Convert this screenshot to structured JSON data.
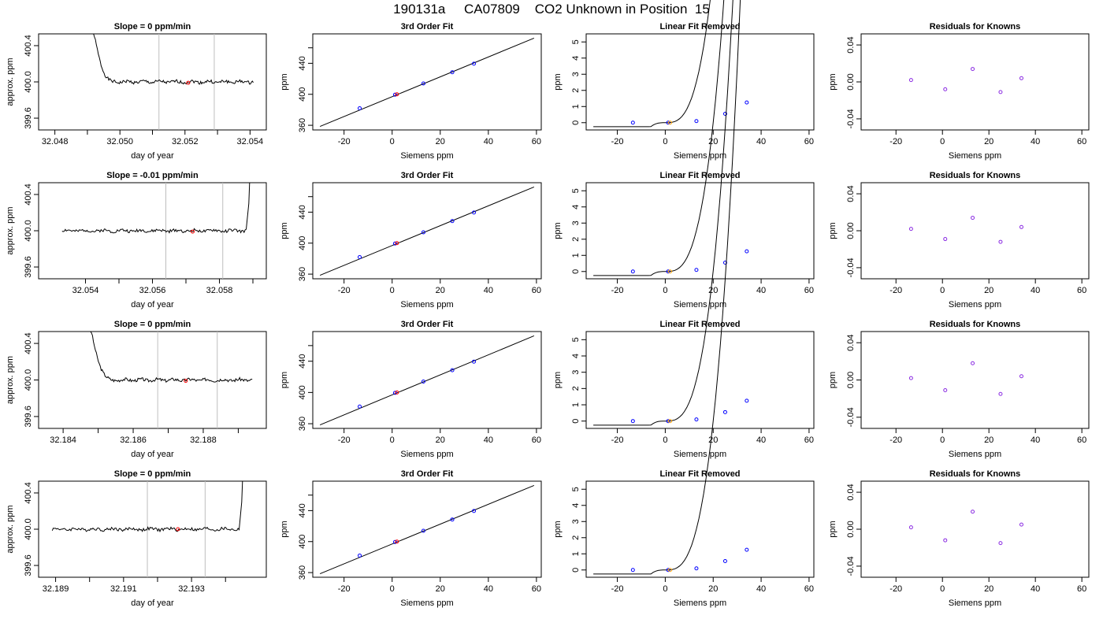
{
  "page_title": "190131a     CA07809    CO2 Unknown in Position  15",
  "colors": {
    "line": "#000000",
    "known_point": "#0000ff",
    "unknown_point": "#ff0000",
    "residual_point": "#8a2be2",
    "marker_line": "#bebebe",
    "fit_unknown_point": "#ffa500"
  },
  "chart_data": [
    {
      "type": "line",
      "panel": "slope",
      "title": "Slope =  0  ppm/min",
      "xlabel": "day of year",
      "ylabel": "approx. ppm",
      "xlim": [
        32.0475,
        32.0545
      ],
      "ylim": [
        399.47,
        400.53
      ],
      "xticks": [
        32.048,
        32.05,
        32.052,
        32.054
      ],
      "xtick_labels": [
        "32.048",
        "32.050",
        "32.052",
        "32.054"
      ],
      "minor_xticks": [
        32.049,
        32.051,
        32.053
      ],
      "yticks": [
        399.6,
        400.0,
        400.4
      ],
      "ytick_labels": [
        "399.6",
        "400.0",
        "400.4"
      ],
      "markers": [
        32.0512,
        32.0529
      ],
      "unknown_point": {
        "x": 32.0521,
        "y": 399.99
      },
      "trace": {
        "start": 32.0491,
        "end": 32.0541,
        "level": 400.0,
        "spike": "start",
        "spike_end": 32.0494,
        "seed": 1
      }
    },
    {
      "type": "scatter",
      "panel": "fit",
      "title": "3rd Order Fit",
      "xlabel": "Siemens ppm",
      "ylabel": "ppm",
      "xlim": [
        -33,
        62
      ],
      "ylim": [
        354,
        478
      ],
      "xticks": [
        -20,
        0,
        20,
        40,
        60
      ],
      "xtick_labels": [
        "-20",
        "0",
        "20",
        "40",
        "60"
      ],
      "yticks": [
        360,
        400,
        440,
        460
      ],
      "ytick_labels": [
        "360",
        "400",
        "440",
        ""
      ],
      "line": [
        {
          "x": -30,
          "y": 358.5
        },
        {
          "x": 59,
          "y": 472.5
        }
      ],
      "knowns": [
        {
          "x": -13.5,
          "y": 382
        },
        {
          "x": 1.2,
          "y": 399.5
        },
        {
          "x": 13,
          "y": 414
        },
        {
          "x": 25,
          "y": 428.5
        },
        {
          "x": 34,
          "y": 439.5
        }
      ],
      "unknown_point": {
        "x": 2,
        "y": 400
      }
    },
    {
      "type": "line",
      "panel": "linear_removed",
      "title": "Linear Fit Removed",
      "xlabel": "Siemens ppm",
      "ylabel": "ppm",
      "xlim": [
        -33,
        62
      ],
      "ylim": [
        -0.45,
        5.5
      ],
      "xticks": [
        -20,
        0,
        20,
        40,
        60
      ],
      "xtick_labels": [
        "-20",
        "0",
        "20",
        "40",
        "60"
      ],
      "yticks": [
        0,
        1,
        2,
        3,
        4,
        5
      ],
      "ytick_labels": [
        "0",
        "1",
        "2",
        "3",
        "4",
        "5"
      ],
      "curve_coef": [
        2.7e-05,
        2.5e-05,
        0.00115
      ],
      "knowns": [
        {
          "x": -13.5,
          "y": 0.0
        },
        {
          "x": 1.2,
          "y": 0.0
        },
        {
          "x": 13,
          "y": 0.1
        },
        {
          "x": 25,
          "y": 0.55
        },
        {
          "x": 34,
          "y": 1.25
        }
      ],
      "unknown_point": {
        "x": 2,
        "y": 0.0
      }
    },
    {
      "type": "scatter",
      "panel": "residuals",
      "title": "Residuals for Knowns",
      "xlabel": "Siemens ppm",
      "ylabel": "ppm",
      "xlim": [
        -35,
        63
      ],
      "ylim": [
        -0.052,
        0.052
      ],
      "xticks": [
        -20,
        0,
        20,
        40,
        60
      ],
      "xtick_labels": [
        "-20",
        "0",
        "20",
        "40",
        "60"
      ],
      "yticks": [
        -0.04,
        0.0,
        0.04
      ],
      "ytick_labels": [
        "-0.04",
        "0.00",
        "0.04"
      ],
      "knowns": [
        {
          "x": -13.5,
          "y": 0.002
        },
        {
          "x": 1.2,
          "y": -0.008
        },
        {
          "x": 13,
          "y": 0.014
        },
        {
          "x": 25,
          "y": -0.011
        },
        {
          "x": 34,
          "y": 0.004
        }
      ]
    },
    {
      "type": "line",
      "panel": "slope",
      "title": "Slope =  -0.01  ppm/min",
      "xlabel": "day of year",
      "ylabel": "approx. ppm",
      "xlim": [
        32.0526,
        32.0594
      ],
      "ylim": [
        399.47,
        400.53
      ],
      "xticks": [
        32.054,
        32.056,
        32.058
      ],
      "xtick_labels": [
        "32.054",
        "32.056",
        "32.058"
      ],
      "minor_xticks": [
        32.055,
        32.057,
        32.059
      ],
      "yticks": [
        399.6,
        400.0,
        400.4
      ],
      "ytick_labels": [
        "399.6",
        "400.0",
        "400.4"
      ],
      "markers": [
        32.0564,
        32.0581
      ],
      "unknown_point": {
        "x": 32.0572,
        "y": 399.99
      },
      "trace": {
        "start": 32.0533,
        "end": 32.0588,
        "level": 400.0,
        "spike": "end",
        "spike_end": 32.0589,
        "seed": 2
      }
    },
    {
      "type": "scatter",
      "panel": "fit",
      "title": "3rd Order Fit",
      "xlabel": "Siemens ppm",
      "ylabel": "ppm",
      "xlim": [
        -33,
        62
      ],
      "ylim": [
        354,
        478
      ],
      "xticks": [
        -20,
        0,
        20,
        40,
        60
      ],
      "xtick_labels": [
        "-20",
        "0",
        "20",
        "40",
        "60"
      ],
      "yticks": [
        360,
        400,
        440,
        460
      ],
      "ytick_labels": [
        "360",
        "400",
        "440",
        ""
      ],
      "line": [
        {
          "x": -30,
          "y": 358.5
        },
        {
          "x": 59,
          "y": 472.5
        }
      ],
      "knowns": [
        {
          "x": -13.5,
          "y": 382
        },
        {
          "x": 1.2,
          "y": 399.5
        },
        {
          "x": 13,
          "y": 414
        },
        {
          "x": 25,
          "y": 428.5
        },
        {
          "x": 34,
          "y": 439.5
        }
      ],
      "unknown_point": {
        "x": 2,
        "y": 400
      }
    },
    {
      "type": "line",
      "panel": "linear_removed",
      "title": "Linear Fit Removed",
      "xlabel": "Siemens ppm",
      "ylabel": "ppm",
      "xlim": [
        -33,
        62
      ],
      "ylim": [
        -0.45,
        5.5
      ],
      "xticks": [
        -20,
        0,
        20,
        40,
        60
      ],
      "xtick_labels": [
        "-20",
        "0",
        "20",
        "40",
        "60"
      ],
      "yticks": [
        0,
        1,
        2,
        3,
        4,
        5
      ],
      "ytick_labels": [
        "0",
        "1",
        "2",
        "3",
        "4",
        "5"
      ],
      "curve_coef": [
        2.7e-05,
        2.5e-05,
        0.00115
      ],
      "knowns": [
        {
          "x": -13.5,
          "y": 0.0
        },
        {
          "x": 1.2,
          "y": 0.0
        },
        {
          "x": 13,
          "y": 0.1
        },
        {
          "x": 25,
          "y": 0.55
        },
        {
          "x": 34,
          "y": 1.25
        }
      ],
      "unknown_point": {
        "x": 2,
        "y": 0.0
      }
    },
    {
      "type": "scatter",
      "panel": "residuals",
      "title": "Residuals for Knowns",
      "xlabel": "Siemens ppm",
      "ylabel": "ppm",
      "xlim": [
        -35,
        63
      ],
      "ylim": [
        -0.052,
        0.052
      ],
      "xticks": [
        -20,
        0,
        20,
        40,
        60
      ],
      "xtick_labels": [
        "-20",
        "0",
        "20",
        "40",
        "60"
      ],
      "yticks": [
        -0.04,
        0.0,
        0.04
      ],
      "ytick_labels": [
        "-0.04",
        "0.00",
        "0.04"
      ],
      "knowns": [
        {
          "x": -13.5,
          "y": 0.002
        },
        {
          "x": 1.2,
          "y": -0.009
        },
        {
          "x": 13,
          "y": 0.014
        },
        {
          "x": 25,
          "y": -0.012
        },
        {
          "x": 34,
          "y": 0.004
        }
      ]
    },
    {
      "type": "line",
      "panel": "slope",
      "title": "Slope =  0  ppm/min",
      "xlabel": "day of year",
      "ylabel": "approx. ppm",
      "xlim": [
        32.1833,
        32.1898
      ],
      "ylim": [
        399.47,
        400.53
      ],
      "xticks": [
        32.184,
        32.186,
        32.188
      ],
      "xtick_labels": [
        "32.184",
        "32.186",
        "32.188"
      ],
      "minor_xticks": [
        32.185,
        32.187,
        32.189
      ],
      "yticks": [
        399.6,
        400.0,
        400.4
      ],
      "ytick_labels": [
        "399.6",
        "400.0",
        "400.4"
      ],
      "markers": [
        32.1867,
        32.1884
      ],
      "unknown_point": {
        "x": 32.1875,
        "y": 399.99
      },
      "trace": {
        "start": 32.1847,
        "end": 32.1894,
        "level": 400.0,
        "spike": "start",
        "spike_end": 32.185,
        "seed": 3
      }
    },
    {
      "type": "scatter",
      "panel": "fit",
      "title": "3rd Order Fit",
      "xlabel": "Siemens ppm",
      "ylabel": "ppm",
      "xlim": [
        -33,
        62
      ],
      "ylim": [
        354,
        478
      ],
      "xticks": [
        -20,
        0,
        20,
        40,
        60
      ],
      "xtick_labels": [
        "-20",
        "0",
        "20",
        "40",
        "60"
      ],
      "yticks": [
        360,
        400,
        440,
        460
      ],
      "ytick_labels": [
        "360",
        "400",
        "440",
        ""
      ],
      "line": [
        {
          "x": -30,
          "y": 358.5
        },
        {
          "x": 59,
          "y": 472.5
        }
      ],
      "knowns": [
        {
          "x": -13.5,
          "y": 382
        },
        {
          "x": 1.2,
          "y": 399.5
        },
        {
          "x": 13,
          "y": 414
        },
        {
          "x": 25,
          "y": 428.5
        },
        {
          "x": 34,
          "y": 439.5
        }
      ],
      "unknown_point": {
        "x": 2,
        "y": 400
      }
    },
    {
      "type": "line",
      "panel": "linear_removed",
      "title": "Linear Fit Removed",
      "xlabel": "Siemens ppm",
      "ylabel": "ppm",
      "xlim": [
        -33,
        62
      ],
      "ylim": [
        -0.45,
        5.5
      ],
      "xticks": [
        -20,
        0,
        20,
        40,
        60
      ],
      "xtick_labels": [
        "-20",
        "0",
        "20",
        "40",
        "60"
      ],
      "yticks": [
        0,
        1,
        2,
        3,
        4,
        5
      ],
      "ytick_labels": [
        "0",
        "1",
        "2",
        "3",
        "4",
        "5"
      ],
      "curve_coef": [
        2.6e-05,
        2.5e-05,
        0.00115
      ],
      "knowns": [
        {
          "x": -13.5,
          "y": 0.0
        },
        {
          "x": 1.2,
          "y": 0.0
        },
        {
          "x": 13,
          "y": 0.1
        },
        {
          "x": 25,
          "y": 0.55
        },
        {
          "x": 34,
          "y": 1.25
        }
      ],
      "unknown_point": {
        "x": 2,
        "y": 0.0
      }
    },
    {
      "type": "scatter",
      "panel": "residuals",
      "title": "Residuals for Knowns",
      "xlabel": "Siemens ppm",
      "ylabel": "ppm",
      "xlim": [
        -35,
        63
      ],
      "ylim": [
        -0.052,
        0.052
      ],
      "xticks": [
        -20,
        0,
        20,
        40,
        60
      ],
      "xtick_labels": [
        "-20",
        "0",
        "20",
        "40",
        "60"
      ],
      "yticks": [
        -0.04,
        0.0,
        0.04
      ],
      "ytick_labels": [
        "-0.04",
        "0.00",
        "0.04"
      ],
      "knowns": [
        {
          "x": -13.5,
          "y": 0.002
        },
        {
          "x": 1.2,
          "y": -0.011
        },
        {
          "x": 13,
          "y": 0.018
        },
        {
          "x": 25,
          "y": -0.015
        },
        {
          "x": 34,
          "y": 0.004
        }
      ]
    },
    {
      "type": "line",
      "panel": "slope",
      "title": "Slope =  0  ppm/min",
      "xlabel": "day of year",
      "ylabel": "approx. ppm",
      "xlim": [
        32.1885,
        32.1952
      ],
      "ylim": [
        399.47,
        400.53
      ],
      "xticks": [
        32.189,
        32.191,
        32.193
      ],
      "xtick_labels": [
        "32.189",
        "32.191",
        "32.193"
      ],
      "minor_xticks": [
        32.19,
        32.192,
        32.194
      ],
      "yticks": [
        399.6,
        400.0,
        400.4
      ],
      "ytick_labels": [
        "399.6",
        "400.0",
        "400.4"
      ],
      "markers": [
        32.1917,
        32.1934
      ],
      "unknown_point": {
        "x": 32.1926,
        "y": 400.0
      },
      "trace": {
        "start": 32.1889,
        "end": 32.1944,
        "level": 400.0,
        "spike": "end",
        "spike_end": 32.1945,
        "seed": 4
      }
    },
    {
      "type": "scatter",
      "panel": "fit",
      "title": "3rd Order Fit",
      "xlabel": "Siemens ppm",
      "ylabel": "ppm",
      "xlim": [
        -33,
        62
      ],
      "ylim": [
        354,
        478
      ],
      "xticks": [
        -20,
        0,
        20,
        40,
        60
      ],
      "xtick_labels": [
        "-20",
        "0",
        "20",
        "40",
        "60"
      ],
      "yticks": [
        360,
        400,
        440,
        460
      ],
      "ytick_labels": [
        "360",
        "400",
        "440",
        ""
      ],
      "line": [
        {
          "x": -30,
          "y": 358.5
        },
        {
          "x": 59,
          "y": 472.5
        }
      ],
      "knowns": [
        {
          "x": -13.5,
          "y": 382
        },
        {
          "x": 1.2,
          "y": 399.5
        },
        {
          "x": 13,
          "y": 414
        },
        {
          "x": 25,
          "y": 428.5
        },
        {
          "x": 34,
          "y": 439.5
        }
      ],
      "unknown_point": {
        "x": 2,
        "y": 400
      }
    },
    {
      "type": "line",
      "panel": "linear_removed",
      "title": "Linear Fit Removed",
      "xlabel": "Siemens ppm",
      "ylabel": "ppm",
      "xlim": [
        -33,
        62
      ],
      "ylim": [
        -0.45,
        5.5
      ],
      "xticks": [
        -20,
        0,
        20,
        40,
        60
      ],
      "xtick_labels": [
        "-20",
        "0",
        "20",
        "40",
        "60"
      ],
      "yticks": [
        0,
        1,
        2,
        3,
        4,
        5
      ],
      "ytick_labels": [
        "0",
        "1",
        "2",
        "3",
        "4",
        "5"
      ],
      "curve_coef": [
        2.6e-05,
        2.5e-05,
        0.00115
      ],
      "knowns": [
        {
          "x": -13.5,
          "y": 0.0
        },
        {
          "x": 1.2,
          "y": 0.0
        },
        {
          "x": 13,
          "y": 0.1
        },
        {
          "x": 25,
          "y": 0.55
        },
        {
          "x": 34,
          "y": 1.25
        }
      ],
      "unknown_point": {
        "x": 2,
        "y": 0.0
      }
    },
    {
      "type": "scatter",
      "panel": "residuals",
      "title": "Residuals for Knowns",
      "xlabel": "Siemens ppm",
      "ylabel": "ppm",
      "xlim": [
        -35,
        63
      ],
      "ylim": [
        -0.052,
        0.052
      ],
      "xticks": [
        -20,
        0,
        20,
        40,
        60
      ],
      "xtick_labels": [
        "-20",
        "0",
        "20",
        "40",
        "60"
      ],
      "yticks": [
        -0.04,
        0.0,
        0.04
      ],
      "ytick_labels": [
        "-0.04",
        "0.00",
        "0.04"
      ],
      "knowns": [
        {
          "x": -13.5,
          "y": 0.002
        },
        {
          "x": 1.2,
          "y": -0.012
        },
        {
          "x": 13,
          "y": 0.019
        },
        {
          "x": 25,
          "y": -0.015
        },
        {
          "x": 34,
          "y": 0.005
        }
      ]
    }
  ]
}
